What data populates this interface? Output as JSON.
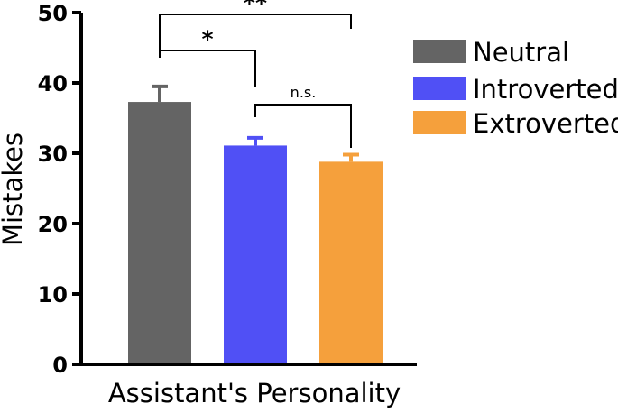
{
  "chart_data": {
    "type": "bar",
    "title": "",
    "xlabel": "Assistant's Personality",
    "ylabel": "Mistakes",
    "ylim": [
      0,
      50
    ],
    "yticks": [
      0,
      10,
      20,
      30,
      40,
      50
    ],
    "grid": false,
    "legend_position": "right",
    "categories": [
      "Neutral",
      "Introverted",
      "Extroverted"
    ],
    "values": [
      37.3,
      31.1,
      28.8
    ],
    "errors": [
      2.2,
      1.1,
      1.0
    ],
    "colors": [
      "#646464",
      "#5050f5",
      "#f5a03c"
    ],
    "significance": [
      {
        "from": "Neutral",
        "to": "Extroverted",
        "label": "**"
      },
      {
        "from": "Neutral",
        "to": "Introverted",
        "label": "*"
      },
      {
        "from": "Introverted",
        "to": "Extroverted",
        "label": "n.s."
      }
    ]
  }
}
